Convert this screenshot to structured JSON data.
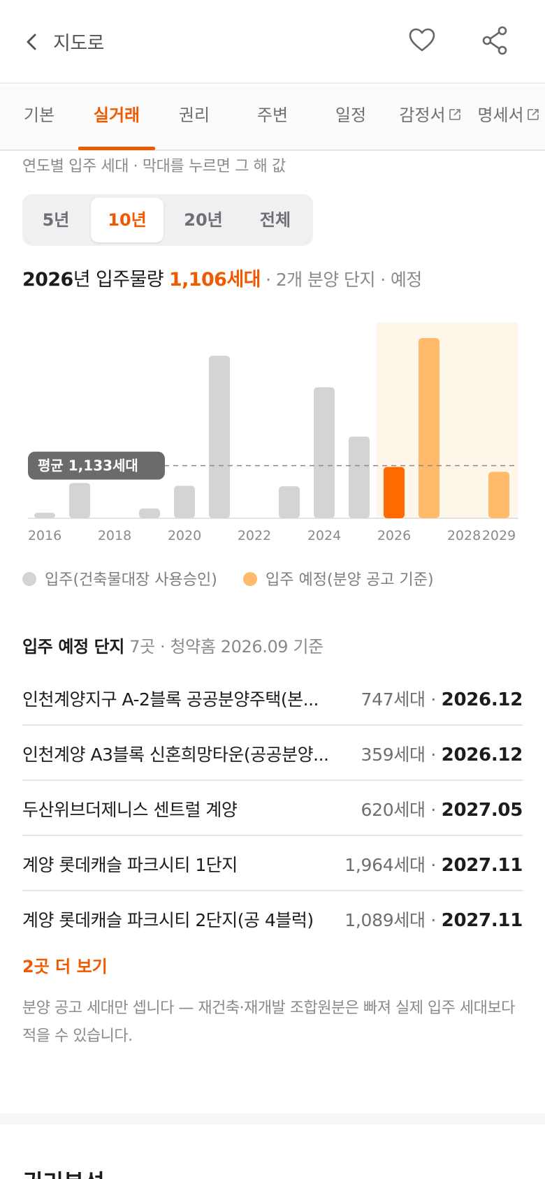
{
  "header": {
    "title": "지도로",
    "back_icon": "chevron-left-icon",
    "favorite_icon": "heart-outline-icon",
    "share_icon": "share-icon"
  },
  "tabs": [
    {
      "label": "기본",
      "active": false,
      "external": false
    },
    {
      "label": "실거래",
      "active": true,
      "external": false
    },
    {
      "label": "권리",
      "active": false,
      "external": false
    },
    {
      "label": "주변",
      "active": false,
      "external": false
    },
    {
      "label": "일정",
      "active": false,
      "external": false
    },
    {
      "label": "감정서",
      "active": false,
      "external": true
    },
    {
      "label": "명세서",
      "active": false,
      "external": true
    }
  ],
  "caption": "연도별 입주 세대 · 막대를 누르면 그 해 값",
  "range": {
    "options": [
      "5년",
      "10년",
      "20년",
      "전체"
    ],
    "selected": "10년"
  },
  "summary": {
    "year": "2026",
    "year_suffix": "년 입주물량 ",
    "count": "1,106세대",
    "detail": " · 2개 분양 단지 · 예정"
  },
  "chart_data": {
    "type": "bar",
    "categories": [
      "2016",
      "2017",
      "2018",
      "2019",
      "2020",
      "2021",
      "2022",
      "2023",
      "2024",
      "2025",
      "2026",
      "2027",
      "2028",
      "2029"
    ],
    "series": [
      {
        "name": "입주(건축물대장 사용승인)",
        "values": [
          120,
          760,
          0,
          210,
          700,
          3500,
          0,
          690,
          2820,
          1760,
          null,
          null,
          null,
          null
        ]
      },
      {
        "name": "입주 예정(분양 공고 기준)",
        "values": [
          null,
          null,
          null,
          null,
          null,
          null,
          null,
          null,
          null,
          null,
          1106,
          3880,
          0,
          1000
        ]
      }
    ],
    "selected_category": "2026",
    "tick_labels": [
      "2016",
      "2018",
      "2020",
      "2022",
      "2024",
      "2026",
      "2028",
      "2029"
    ],
    "average": {
      "label": "평균 1,133세대",
      "value": 1133
    },
    "forecast_from": "2026",
    "ylim": [
      0,
      4000
    ],
    "colors": {
      "actual": "#d4d4d4",
      "forecast": "#ffba6b",
      "selected": "#ff6a00",
      "forecast_band": "#fff6ea",
      "avg_label_bg": "#6b6b6b"
    },
    "legend_position": "bottom-left",
    "grid": false
  },
  "legend": [
    {
      "label": "입주(건축물대장 사용승인)",
      "color": "#d4d4d4"
    },
    {
      "label": "입주 예정(분양 공고 기준)",
      "color": "#ffba6b"
    }
  ],
  "upcoming": {
    "title": "입주 예정 단지",
    "subtitle": " 7곳 · 청약홈 2026.09 기준",
    "rows": [
      {
        "name": "인천계양지구 A-2블록 공공분양주택(본...",
        "units": "747세대 · ",
        "date": "2026.12"
      },
      {
        "name": "인천계양 A3블록 신혼희망타운(공공분양...",
        "units": "359세대 · ",
        "date": "2026.12"
      },
      {
        "name": "두산위브더제니스 센트럴 계양",
        "units": "620세대 · ",
        "date": "2027.05"
      },
      {
        "name": "계양 롯데캐슬 파크시티 1단지",
        "units": "1,964세대 · ",
        "date": "2027.11"
      },
      {
        "name": "계양 롯데캐슬 파크시티 2단지(공 4블럭)",
        "units": "1,089세대 · ",
        "date": "2027.11"
      }
    ],
    "more_label": "2곳 더 보기",
    "note": "분양 공고 세대만 셉니다 — 재건축·재개발 조합원분은 빠져 실제 입주 세대보다 적을 수 있습니다."
  },
  "next_section_title": "권리분석",
  "accent_color": "#ef5a00"
}
